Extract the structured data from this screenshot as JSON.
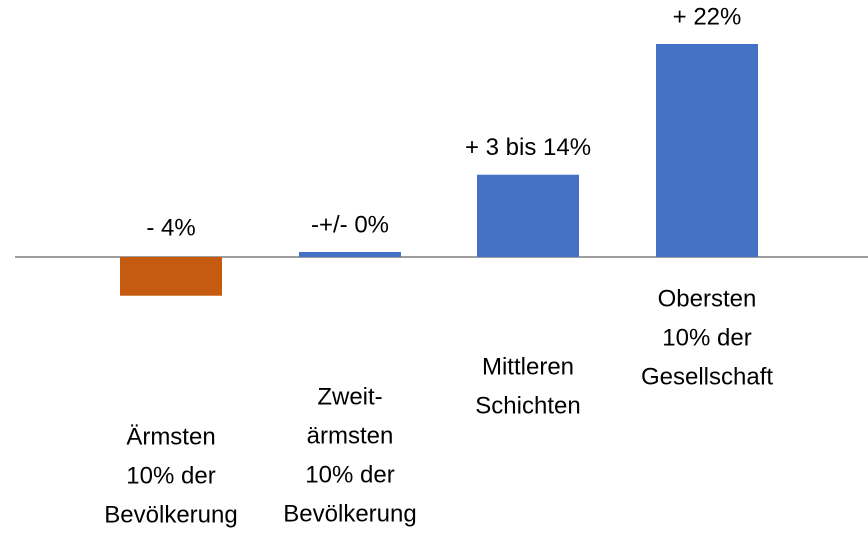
{
  "chart_data": {
    "type": "bar",
    "categories": [
      [
        "Ärmsten",
        "10% der",
        "Bevölkerung"
      ],
      [
        "Zweit-",
        "ärmsten",
        "10% der",
        "Bevölkerung"
      ],
      [
        "Mittleren",
        "Schichten"
      ],
      [
        "Obersten",
        "10% der",
        "Gesellschaft"
      ]
    ],
    "values": [
      -4,
      0,
      8.5,
      22
    ],
    "value_labels": [
      "- 4%",
      "-+/- 0%",
      "+ 3 bis 14%",
      "+ 22%"
    ],
    "colors": [
      "#c55a11",
      "#4472c4",
      "#4472c4",
      "#4472c4"
    ]
  }
}
